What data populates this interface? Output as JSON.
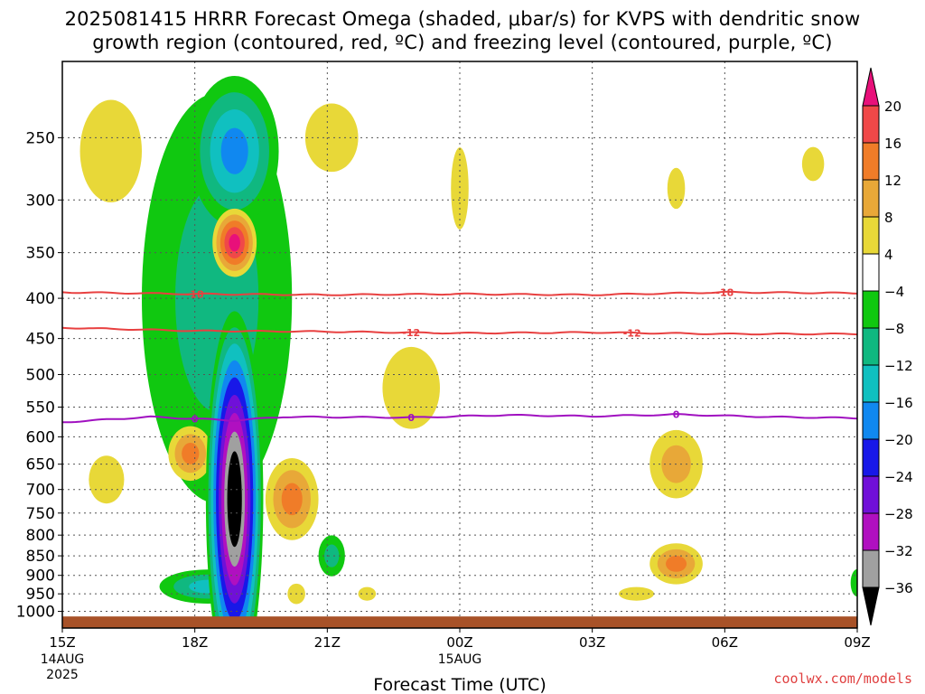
{
  "title": {
    "line1": "2025081415 HRRR Forecast Omega (shaded, μbar/s) for KVPS with dendritic snow",
    "line2": "growth region (contoured, red, ºC) and freezing level (contoured, purple, ºC)"
  },
  "credit": "coolwx.com/models",
  "chart_data": {
    "type": "heatmap",
    "title": "2025081415 HRRR Forecast Omega (shaded, μbar/s) for KVPS with dendritic snow growth region (contoured, red, ºC) and freezing level (contoured, purple, ºC)",
    "xlabel": "Forecast Time (UTC)",
    "ylabel": "",
    "x_ticks": [
      {
        "label": "15Z",
        "sub": [
          "14AUG",
          "2025"
        ],
        "hours": 0
      },
      {
        "label": "18Z",
        "sub": [],
        "hours": 3
      },
      {
        "label": "21Z",
        "sub": [],
        "hours": 6
      },
      {
        "label": "00Z",
        "sub": [
          "15AUG"
        ],
        "hours": 9
      },
      {
        "label": "03Z",
        "sub": [],
        "hours": 12
      },
      {
        "label": "06Z",
        "sub": [],
        "hours": 15
      },
      {
        "label": "09Z",
        "sub": [],
        "hours": 18
      }
    ],
    "xlim": [
      0,
      18
    ],
    "ylim": [
      1050,
      200
    ],
    "y_scale": "log",
    "y_ticks": [
      250,
      300,
      350,
      400,
      450,
      500,
      550,
      600,
      650,
      700,
      750,
      800,
      850,
      900,
      950,
      1000
    ],
    "grid": true,
    "colorbar": {
      "labels": [
        "20",
        "16",
        "12",
        "8",
        "4",
        "−4",
        "−8",
        "−12",
        "−16",
        "−20",
        "−24",
        "−28",
        "−32",
        "−36"
      ],
      "label_values": [
        20,
        16,
        12,
        8,
        4,
        -4,
        -8,
        -12,
        -16,
        -20,
        -24,
        -28,
        -32,
        -36
      ],
      "bands": [
        {
          "from": 20,
          "to": 24,
          "color": "#e8107a"
        },
        {
          "from": 16,
          "to": 20,
          "color": "#f04848"
        },
        {
          "from": 12,
          "to": 16,
          "color": "#f07c28"
        },
        {
          "from": 8,
          "to": 12,
          "color": "#e8a838"
        },
        {
          "from": 4,
          "to": 8,
          "color": "#e8d838"
        },
        {
          "from": -4,
          "to": 4,
          "color": "#ffffff"
        },
        {
          "from": -8,
          "to": -4,
          "color": "#10c810"
        },
        {
          "from": -12,
          "to": -8,
          "color": "#10b880"
        },
        {
          "from": -16,
          "to": -12,
          "color": "#10c0c0"
        },
        {
          "from": -20,
          "to": -16,
          "color": "#1088f0"
        },
        {
          "from": -24,
          "to": -20,
          "color": "#1818e8"
        },
        {
          "from": -28,
          "to": -24,
          "color": "#7010d8"
        },
        {
          "from": -32,
          "to": -28,
          "color": "#b010c0"
        },
        {
          "from": -36,
          "to": -32,
          "color": "#a0a0a0"
        },
        {
          "from": -40,
          "to": -36,
          "color": "#000000"
        }
      ]
    },
    "omega_features": [
      {
        "sign": "down",
        "peak": -40,
        "t": 3.9,
        "p": 720,
        "dt": 0.65,
        "dp_log": 0.55,
        "levels": [
          -40,
          -36,
          -32,
          -28,
          -24,
          -20,
          -16,
          -12,
          -8
        ]
      },
      {
        "sign": "down",
        "peak": -8,
        "t": 3.5,
        "p": 400,
        "dt": 1.7,
        "dp_log": 0.6
      },
      {
        "sign": "down",
        "peak": -16,
        "t": 3.9,
        "p": 260,
        "dt": 1.0,
        "dp_log": 0.22
      },
      {
        "sign": "down",
        "peak": -12,
        "t": 3.3,
        "p": 930,
        "dt": 1.1,
        "dp_log": 0.05
      },
      {
        "sign": "down",
        "peak": -8,
        "t": 6.1,
        "p": 850,
        "dt": 0.3,
        "dp_log": 0.06
      },
      {
        "sign": "down",
        "peak": -4,
        "t": 18.0,
        "p": 920,
        "dt": 0.15,
        "dp_log": 0.04
      },
      {
        "sign": "up",
        "peak": 22,
        "t": 3.9,
        "p": 340,
        "dt": 0.5,
        "dp_log": 0.1
      },
      {
        "sign": "up",
        "peak": 14,
        "t": 2.9,
        "p": 630,
        "dt": 0.5,
        "dp_log": 0.08
      },
      {
        "sign": "up",
        "peak": 14,
        "t": 5.2,
        "p": 720,
        "dt": 0.6,
        "dp_log": 0.12
      },
      {
        "sign": "up",
        "peak": 14,
        "t": 13.9,
        "p": 870,
        "dt": 0.6,
        "dp_log": 0.06
      },
      {
        "sign": "up",
        "peak": 10,
        "t": 13.9,
        "p": 650,
        "dt": 0.6,
        "dp_log": 0.1
      },
      {
        "sign": "up",
        "peak": 6,
        "t": 7.9,
        "p": 520,
        "dt": 0.65,
        "dp_log": 0.12
      },
      {
        "sign": "up",
        "peak": 6,
        "t": 1.1,
        "p": 260,
        "dt": 0.7,
        "dp_log": 0.15
      },
      {
        "sign": "up",
        "peak": 6,
        "t": 1.0,
        "p": 680,
        "dt": 0.4,
        "dp_log": 0.07
      },
      {
        "sign": "up",
        "peak": 5,
        "t": 9.0,
        "p": 290,
        "dt": 0.2,
        "dp_log": 0.12
      },
      {
        "sign": "up",
        "peak": 5,
        "t": 13.9,
        "p": 290,
        "dt": 0.2,
        "dp_log": 0.06
      },
      {
        "sign": "up",
        "peak": 5,
        "t": 17.0,
        "p": 270,
        "dt": 0.25,
        "dp_log": 0.05
      },
      {
        "sign": "up",
        "peak": 5,
        "t": 6.9,
        "p": 950,
        "dt": 0.2,
        "dp_log": 0.02
      },
      {
        "sign": "up",
        "peak": 5,
        "t": 13.0,
        "p": 950,
        "dt": 0.4,
        "dp_log": 0.02
      },
      {
        "sign": "up",
        "peak": 5,
        "t": 5.3,
        "p": 950,
        "dt": 0.2,
        "dp_log": 0.03
      },
      {
        "sign": "up",
        "peak": 5,
        "t": 6.1,
        "p": 250,
        "dt": 0.6,
        "dp_log": 0.1
      }
    ],
    "contours": [
      {
        "name": "-18",
        "color": "#e84040",
        "label_color": "#e84040",
        "points": [
          [
            0,
            393
          ],
          [
            3,
            395
          ],
          [
            6,
            396
          ],
          [
            9,
            395
          ],
          [
            12,
            396
          ],
          [
            15,
            393
          ],
          [
            18,
            394
          ]
        ],
        "labels_at": [
          3.0,
          15.0
        ]
      },
      {
        "name": "-12",
        "color": "#e84040",
        "label_color": "#e84040",
        "points": [
          [
            0,
            436
          ],
          [
            3,
            440
          ],
          [
            6,
            441
          ],
          [
            9,
            443
          ],
          [
            12,
            442
          ],
          [
            15,
            444
          ],
          [
            18,
            444
          ]
        ],
        "labels_at": [
          7.9,
          12.9
        ]
      },
      {
        "name": "0",
        "color": "#a010c0",
        "label_color": "#a010c0",
        "points": [
          [
            0,
            575
          ],
          [
            2,
            566
          ],
          [
            3.9,
            572
          ],
          [
            5,
            566
          ],
          [
            8,
            567
          ],
          [
            10,
            563
          ],
          [
            12,
            565
          ],
          [
            13.9,
            562
          ],
          [
            16,
            566
          ],
          [
            18,
            568
          ]
        ],
        "labels_at": [
          3.0,
          7.9,
          13.9
        ]
      }
    ],
    "ground": {
      "from_p": 1015,
      "to_p": 1050,
      "color": "#a85228"
    }
  }
}
